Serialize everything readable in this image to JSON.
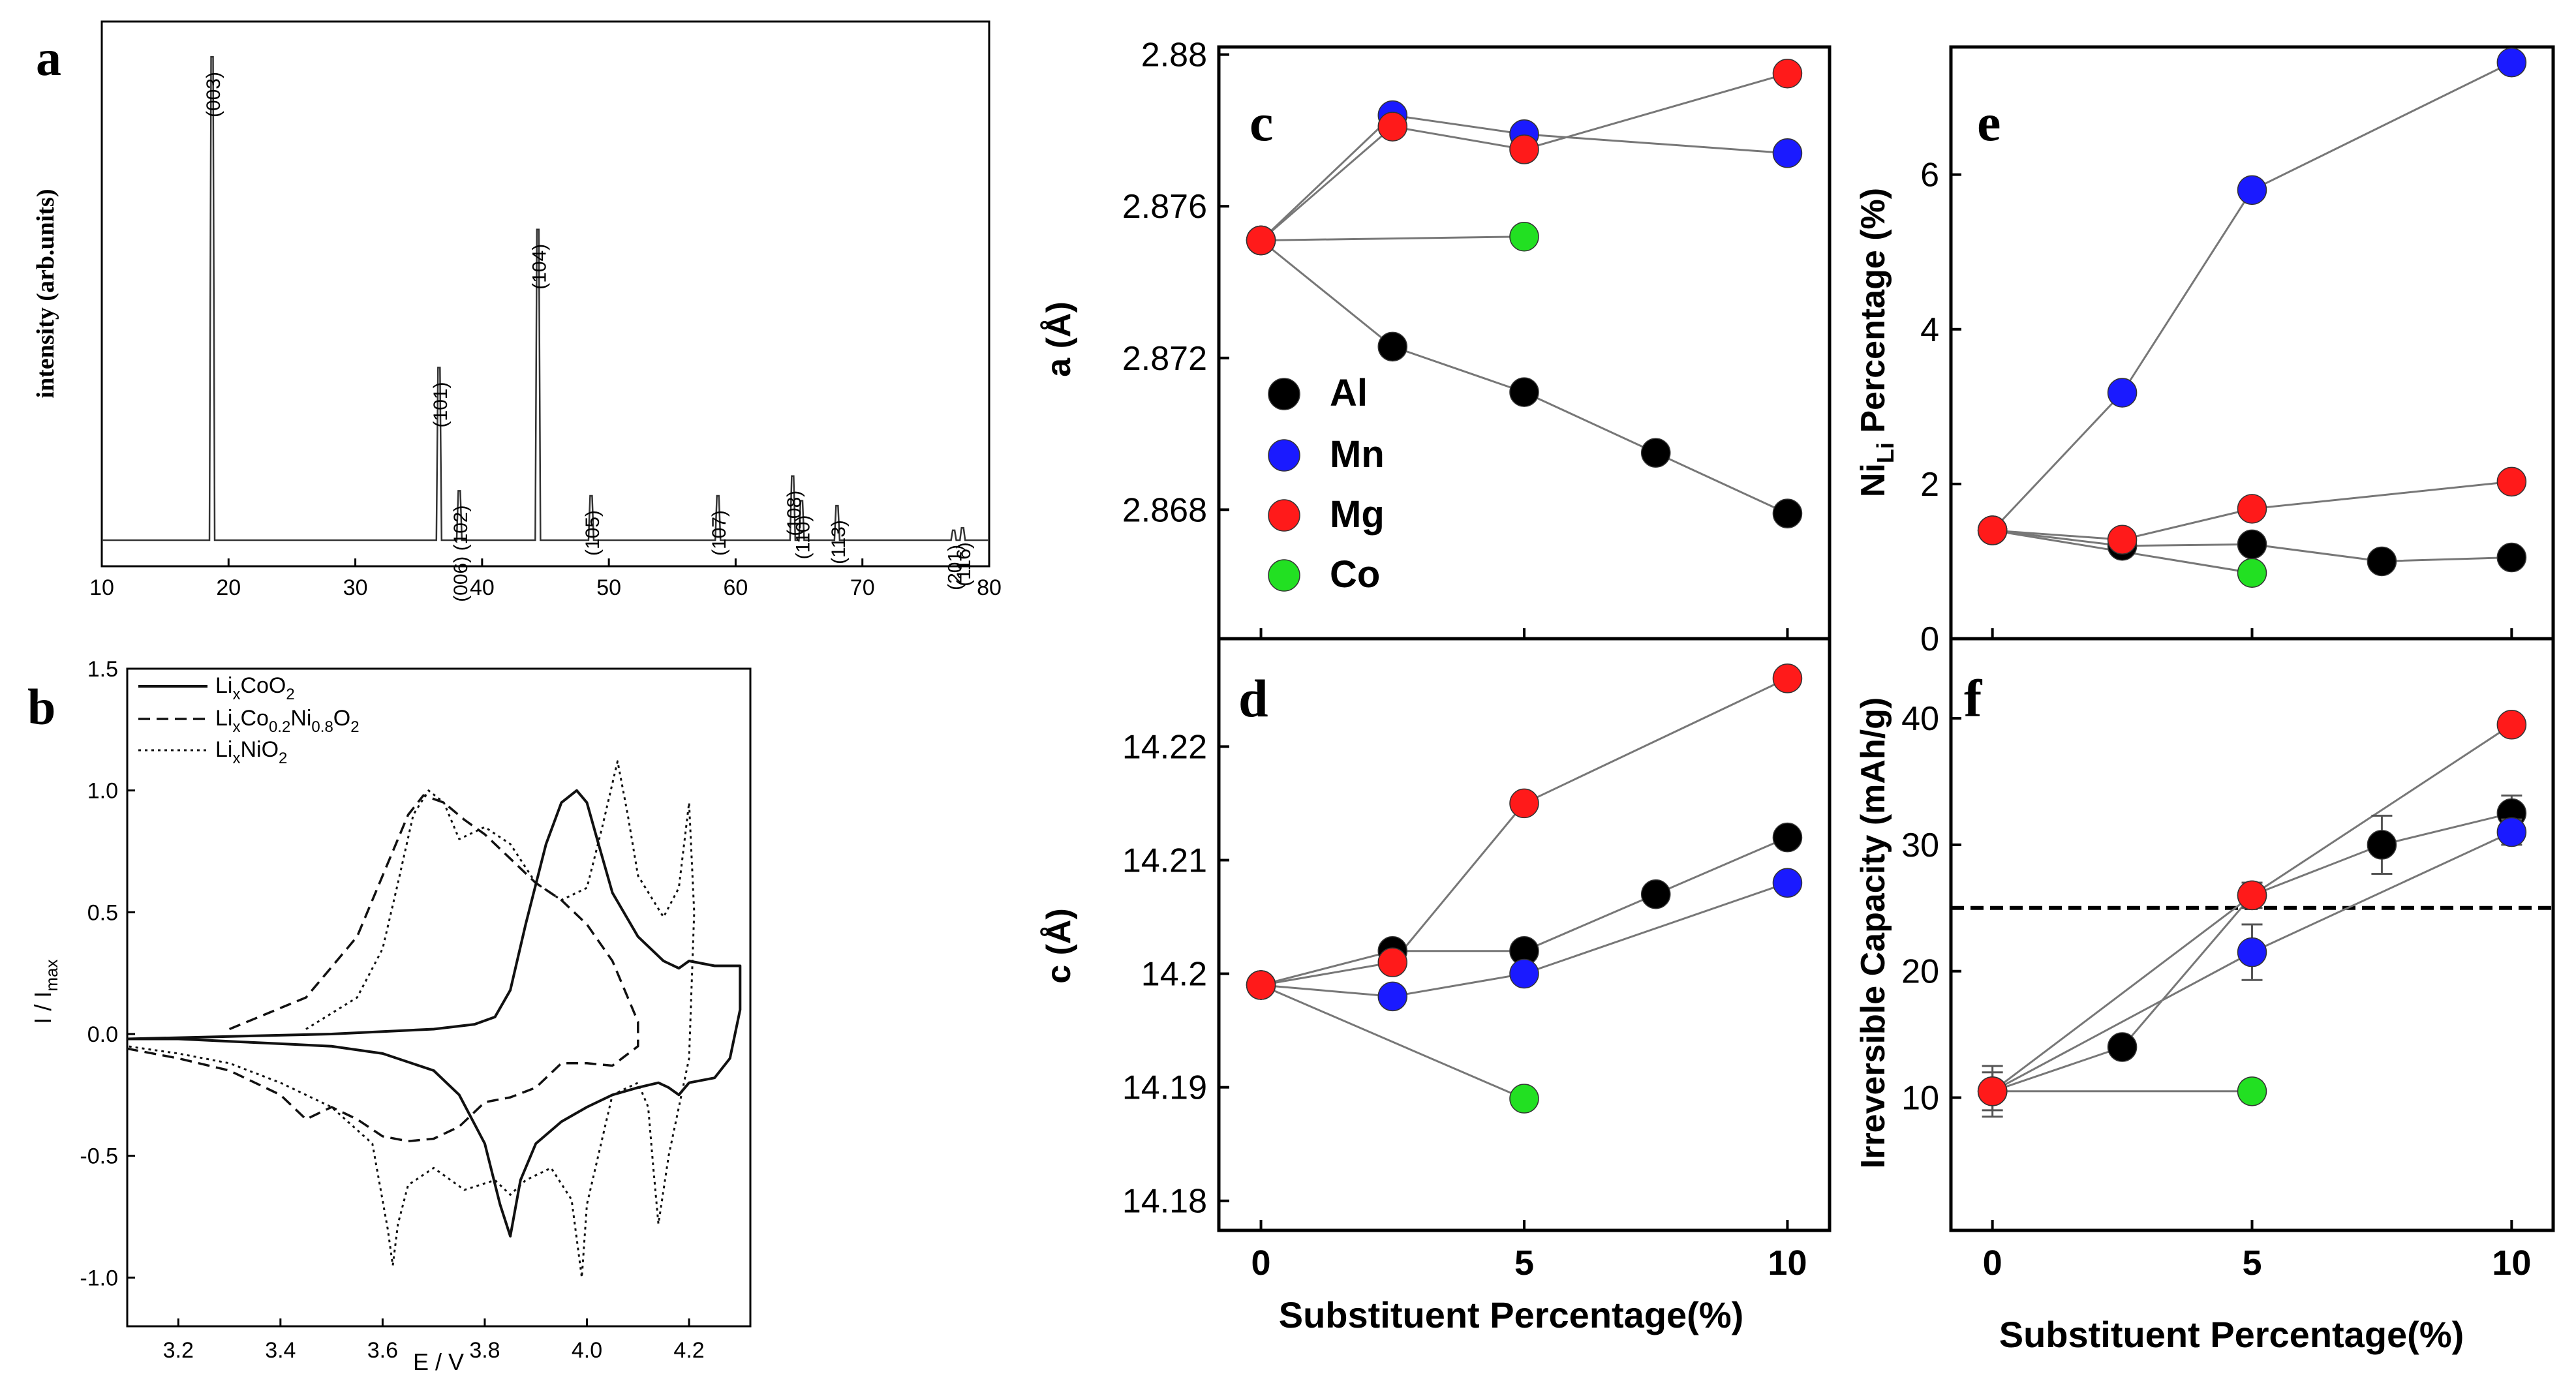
{
  "chart_data": [
    {
      "panel": "a",
      "type": "line",
      "panel_label": "a",
      "ylabel": "intensity (arb.units)",
      "xlabel": "",
      "xlim": [
        10,
        80
      ],
      "xticks": [
        "10",
        "20",
        "30",
        "40",
        "50",
        "60",
        "70",
        "80"
      ],
      "peaks": [
        {
          "x": 18.7,
          "h": 0.98,
          "label": "(003)"
        },
        {
          "x": 36.6,
          "h": 0.35,
          "label": "(101)"
        },
        {
          "x": 38.2,
          "h": 0.1,
          "label": "(006) (102)"
        },
        {
          "x": 44.4,
          "h": 0.63,
          "label": "(104)"
        },
        {
          "x": 48.6,
          "h": 0.09,
          "label": "(105)"
        },
        {
          "x": 58.6,
          "h": 0.09,
          "label": "(107)"
        },
        {
          "x": 64.5,
          "h": 0.13,
          "label": "(108)"
        },
        {
          "x": 65.2,
          "h": 0.08,
          "label": "(110)"
        },
        {
          "x": 68.0,
          "h": 0.07,
          "label": "(113)"
        },
        {
          "x": 77.2,
          "h": 0.02,
          "label": "(201)"
        },
        {
          "x": 77.9,
          "h": 0.025,
          "label": "(116)"
        }
      ]
    },
    {
      "panel": "b",
      "type": "line",
      "panel_label": "b",
      "xlabel": "E / V",
      "ylabel": "I / I",
      "ylabel_sub": "max",
      "xlim": [
        3.1,
        4.32
      ],
      "ylim": [
        -1.2,
        1.5
      ],
      "xticks": [
        "3.2",
        "3.4",
        "3.6",
        "3.8",
        "4.0",
        "4.2"
      ],
      "yticks": [
        "-1.0",
        "-0.5",
        "0.0",
        "0.5",
        "1.0",
        "1.5"
      ],
      "legend": [
        {
          "parts": [
            "Li",
            "x",
            "CoO",
            "2"
          ],
          "style": "solid"
        },
        {
          "parts": [
            "Li",
            "x",
            "Co",
            "0.2",
            "Ni",
            "0.8",
            "O",
            "2"
          ],
          "style": "dashed"
        },
        {
          "parts": [
            "Li",
            "x",
            "NiO",
            "2"
          ],
          "style": "dotted"
        }
      ],
      "series": [
        {
          "name": "LixCoO2",
          "style": "solid",
          "x": [
            3.1,
            3.3,
            3.5,
            3.7,
            3.78,
            3.82,
            3.85,
            3.88,
            3.92,
            3.95,
            3.98,
            4.0,
            4.02,
            4.05,
            4.1,
            4.15,
            4.18,
            4.2,
            4.25,
            4.3,
            4.3,
            4.28,
            4.25,
            4.2,
            4.18,
            4.16,
            4.14,
            4.1,
            4.05,
            4.0,
            3.95,
            3.9,
            3.87,
            3.85,
            3.83,
            3.8,
            3.75,
            3.7,
            3.6,
            3.5,
            3.4,
            3.3,
            3.2,
            3.1
          ],
          "y": [
            -0.02,
            -0.01,
            0.0,
            0.02,
            0.04,
            0.07,
            0.18,
            0.45,
            0.78,
            0.95,
            1.0,
            0.95,
            0.8,
            0.58,
            0.4,
            0.3,
            0.27,
            0.3,
            0.28,
            0.28,
            0.1,
            -0.1,
            -0.18,
            -0.2,
            -0.25,
            -0.22,
            -0.2,
            -0.22,
            -0.25,
            -0.3,
            -0.36,
            -0.45,
            -0.6,
            -0.83,
            -0.7,
            -0.45,
            -0.25,
            -0.15,
            -0.08,
            -0.05,
            -0.04,
            -0.03,
            -0.02,
            -0.02
          ]
        },
        {
          "name": "LixCo0.2Ni0.8O2",
          "style": "dashed",
          "x": [
            3.3,
            3.45,
            3.55,
            3.6,
            3.65,
            3.68,
            3.72,
            3.76,
            3.8,
            3.85,
            3.9,
            3.95,
            4.0,
            4.05,
            4.1,
            4.1,
            4.05,
            4.0,
            3.95,
            3.9,
            3.85,
            3.8,
            3.75,
            3.7,
            3.65,
            3.6,
            3.55,
            3.5,
            3.45,
            3.4,
            3.3,
            3.2,
            3.1
          ],
          "y": [
            0.02,
            0.15,
            0.4,
            0.65,
            0.9,
            0.98,
            0.95,
            0.88,
            0.82,
            0.72,
            0.62,
            0.55,
            0.45,
            0.3,
            0.05,
            -0.05,
            -0.13,
            -0.12,
            -0.12,
            -0.22,
            -0.26,
            -0.28,
            -0.38,
            -0.43,
            -0.44,
            -0.42,
            -0.35,
            -0.3,
            -0.35,
            -0.25,
            -0.15,
            -0.1,
            -0.06
          ]
        },
        {
          "name": "LixNiO2",
          "style": "dotted",
          "x": [
            3.45,
            3.55,
            3.6,
            3.63,
            3.66,
            3.69,
            3.72,
            3.75,
            3.8,
            3.85,
            3.9,
            3.95,
            4.0,
            4.03,
            4.06,
            4.08,
            4.1,
            4.15,
            4.18,
            4.2,
            4.21,
            4.2,
            4.16,
            4.14,
            4.13,
            4.12,
            4.1,
            4.05,
            4.0,
            3.99,
            3.97,
            3.93,
            3.88,
            3.85,
            3.82,
            3.76,
            3.7,
            3.65,
            3.63,
            3.62,
            3.61,
            3.58,
            3.5,
            3.4,
            3.3,
            3.2,
            3.1
          ],
          "y": [
            0.02,
            0.15,
            0.35,
            0.62,
            0.9,
            1.0,
            0.95,
            0.8,
            0.85,
            0.78,
            0.62,
            0.55,
            0.6,
            0.85,
            1.12,
            0.9,
            0.65,
            0.48,
            0.6,
            0.95,
            0.5,
            -0.1,
            -0.5,
            -0.78,
            -0.55,
            -0.3,
            -0.2,
            -0.25,
            -0.7,
            -1.0,
            -0.68,
            -0.55,
            -0.6,
            -0.66,
            -0.6,
            -0.64,
            -0.55,
            -0.62,
            -0.78,
            -0.95,
            -0.8,
            -0.45,
            -0.3,
            -0.2,
            -0.12,
            -0.08,
            -0.05
          ]
        }
      ]
    },
    {
      "panel": "c",
      "type": "scatter",
      "panel_label": "c",
      "ylabel": "a (Å)",
      "ylim": [
        2.8646,
        2.8802
      ],
      "xlim": [
        -0.8,
        10.8
      ],
      "yticks": [
        2.868,
        2.872,
        2.876,
        2.88
      ],
      "ytick_labels": [
        "2.868",
        "2.872",
        "2.876",
        "2.88"
      ],
      "legend": [
        "Al",
        "Mn",
        "Mg",
        "Co"
      ],
      "series": [
        {
          "name": "Al",
          "x": [
            0,
            2.5,
            5,
            7.5,
            10
          ],
          "values": [
            2.8751,
            2.8723,
            2.8711,
            2.8695,
            2.8679
          ]
        },
        {
          "name": "Mn",
          "x": [
            0,
            2.5,
            5,
            10
          ],
          "values": [
            2.8751,
            2.8784,
            2.8779,
            2.8774
          ]
        },
        {
          "name": "Mg",
          "x": [
            0,
            2.5,
            5,
            10
          ],
          "values": [
            2.8751,
            2.8781,
            2.8775,
            2.8795
          ]
        },
        {
          "name": "Co",
          "x": [
            0,
            5
          ],
          "values": [
            2.8751,
            2.8752
          ]
        }
      ]
    },
    {
      "panel": "d",
      "type": "scatter",
      "panel_label": "d",
      "ylabel": "c (Å)",
      "xlabel": "Substituent Percentage(%)",
      "ylim": [
        14.1774,
        14.2295
      ],
      "xlim": [
        -0.8,
        10.8
      ],
      "yticks": [
        14.18,
        14.19,
        14.2,
        14.21,
        14.22
      ],
      "ytick_labels": [
        "14.18",
        "14.19",
        "14.2",
        "14.21",
        "14.22"
      ],
      "xticks": [
        "0",
        "5",
        "10"
      ],
      "series": [
        {
          "name": "Al",
          "x": [
            0,
            2.5,
            5,
            7.5,
            10
          ],
          "values": [
            14.199,
            14.202,
            14.202,
            14.207,
            14.212
          ]
        },
        {
          "name": "Mn",
          "x": [
            0,
            2.5,
            5,
            10
          ],
          "values": [
            14.199,
            14.198,
            14.2,
            14.208
          ]
        },
        {
          "name": "Mg",
          "x": [
            0,
            2.5,
            5,
            10
          ],
          "values": [
            14.199,
            14.201,
            14.215,
            14.226
          ]
        },
        {
          "name": "Co",
          "x": [
            0,
            5
          ],
          "values": [
            14.199,
            14.189
          ]
        }
      ]
    },
    {
      "panel": "e",
      "type": "scatter",
      "panel_label": "e",
      "ylabel_main": "Ni",
      "ylabel_sub": "Li",
      "ylabel_rest": " Percentage (%)",
      "ylim": [
        0,
        7.65
      ],
      "xlim": [
        -0.8,
        10.8
      ],
      "yticks": [
        0,
        2,
        4,
        6
      ],
      "ytick_labels": [
        "0",
        "2",
        "4",
        "6"
      ],
      "series": [
        {
          "name": "Al",
          "x": [
            0,
            2.5,
            5,
            7.5,
            10
          ],
          "values": [
            1.4,
            1.2,
            1.22,
            1.0,
            1.05
          ]
        },
        {
          "name": "Mn",
          "x": [
            0,
            2.5,
            5,
            10
          ],
          "values": [
            1.4,
            3.18,
            5.8,
            7.45
          ]
        },
        {
          "name": "Mg",
          "x": [
            0,
            2.5,
            5,
            10
          ],
          "values": [
            1.4,
            1.28,
            1.68,
            2.03
          ]
        },
        {
          "name": "Co",
          "x": [
            0,
            5
          ],
          "values": [
            1.4,
            0.85
          ]
        }
      ]
    },
    {
      "panel": "f",
      "type": "scatter",
      "panel_label": "f",
      "ylabel": "Irreversible Capacity (mAh/g)",
      "xlabel": "Substituent Percentage(%)",
      "ylim": [
        -0.5,
        46.3
      ],
      "xlim": [
        -0.8,
        10.8
      ],
      "yticks": [
        10,
        20,
        30,
        40
      ],
      "ytick_labels": [
        "10",
        "20",
        "30",
        "40"
      ],
      "xticks": [
        "0",
        "5",
        "10"
      ],
      "reference_line": 25,
      "series": [
        {
          "name": "Al",
          "x": [
            0,
            2.5,
            5,
            7.5,
            10
          ],
          "values": [
            10.5,
            14,
            26,
            30,
            32.5
          ],
          "err": [
            2,
            0,
            1,
            2.3,
            1.4
          ]
        },
        {
          "name": "Mn",
          "x": [
            0,
            5,
            10
          ],
          "values": [
            10.5,
            21.5,
            31
          ],
          "err": [
            0,
            2.2,
            1
          ]
        },
        {
          "name": "Mg",
          "x": [
            0,
            5,
            10
          ],
          "values": [
            10.5,
            26,
            39.5
          ],
          "err": [
            0,
            0,
            0
          ]
        },
        {
          "name": "Co",
          "x": [
            0,
            5
          ],
          "values": [
            10.5,
            10.5
          ],
          "err": [
            1.5,
            0.8
          ]
        }
      ]
    }
  ],
  "colors": {
    "Al": "#000000",
    "Mn": "#1a1aff",
    "Mg": "#ff1a1a",
    "Co": "#22e022"
  }
}
